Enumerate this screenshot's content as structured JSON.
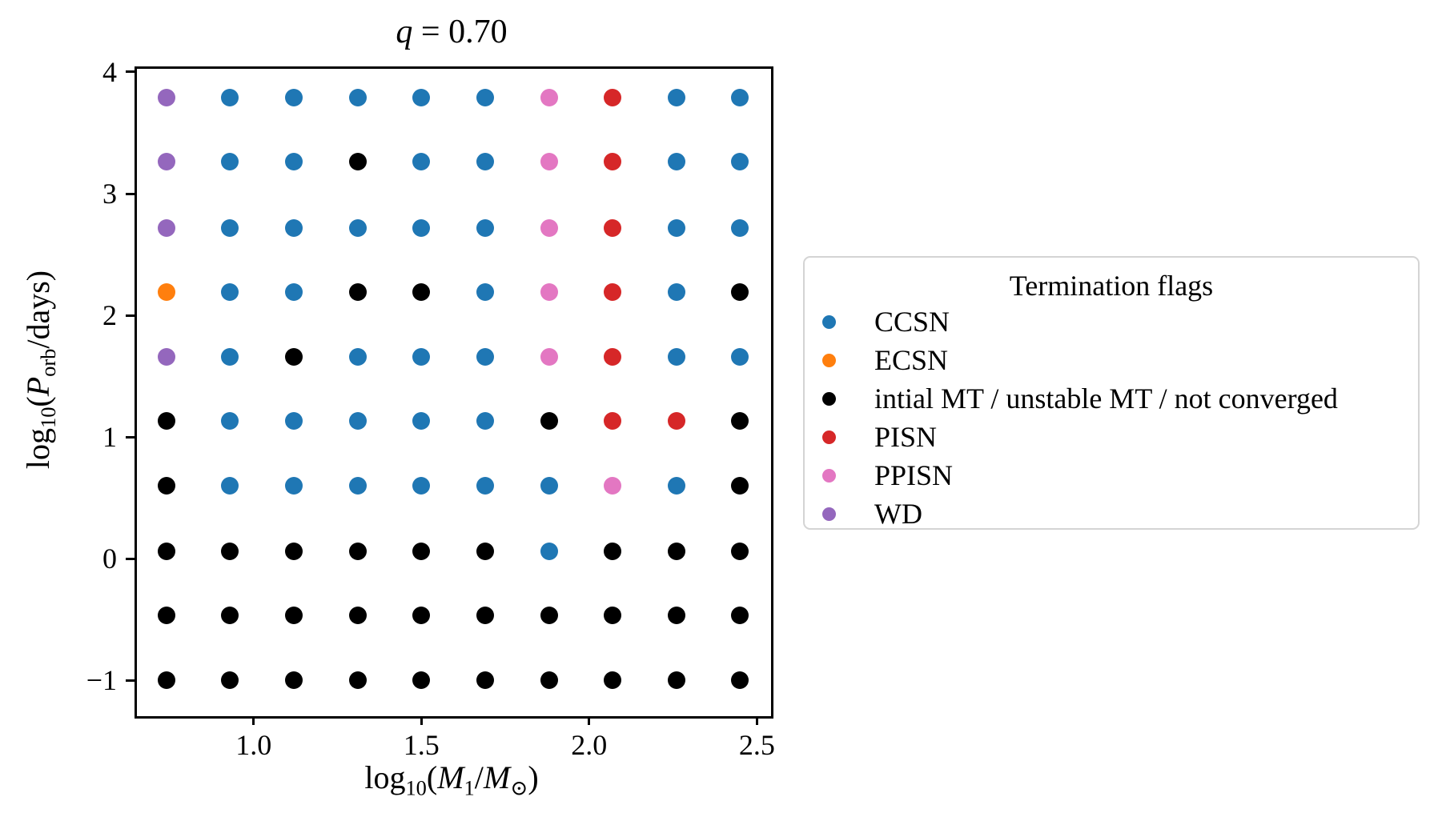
{
  "figure": {
    "background": "#ffffff",
    "title_parts": [
      {
        "t": "q",
        "it": true
      },
      {
        "t": " = 0.70"
      }
    ]
  },
  "chart_data": {
    "type": "scatter",
    "title": "q = 0.70",
    "xlabel": "log10(M1/Msun)",
    "ylabel": "log10(Porb/days)",
    "xlabel_parts": [
      {
        "t": "log"
      },
      {
        "t": "10",
        "sub": true
      },
      {
        "t": "("
      },
      {
        "t": "M",
        "it": true
      },
      {
        "t": "1",
        "sub": true
      },
      {
        "t": "/"
      },
      {
        "t": "M",
        "it": true
      },
      {
        "t": "⊙",
        "sub": true
      },
      {
        "t": ")"
      }
    ],
    "ylabel_parts": [
      {
        "t": "log"
      },
      {
        "t": "10",
        "sub": true
      },
      {
        "t": "("
      },
      {
        "t": "P",
        "it": true
      },
      {
        "t": "orb",
        "sub": true
      },
      {
        "t": "/days)"
      }
    ],
    "xlim": [
      0.645,
      2.535
    ],
    "ylim": [
      -1.276,
      4.046
    ],
    "x_ticks": {
      "values": [
        1.0,
        1.5,
        2.0,
        2.5
      ],
      "labels": [
        "1.0",
        "1.5",
        "2.0",
        "2.5"
      ]
    },
    "y_ticks": {
      "values": [
        4,
        3,
        2,
        1,
        0,
        -1
      ],
      "labels": [
        "4",
        "3",
        "2",
        "1",
        "0",
        "−1"
      ]
    },
    "x_values": [
      0.74,
      0.93,
      1.12,
      1.31,
      1.5,
      1.69,
      1.88,
      2.07,
      2.26,
      2.45
    ],
    "y_values": [
      3.79,
      3.26,
      2.72,
      2.19,
      1.66,
      1.13,
      0.6,
      0.06,
      -0.47,
      -1.0
    ],
    "grid_codes": [
      "WCCCCCPRCC",
      "WCCMCCPRCC",
      "WCCCCCPRCC",
      "ECCMMCPRCM",
      "WCMCCCPRCC",
      "MCCCCCMRRM",
      "MCCCCCCPCM",
      "MMMMMMCMMM",
      "MMMMMMMMMM",
      "MMMMMMMMMM"
    ],
    "code_map": {
      "C": "CCSN",
      "E": "ECSN",
      "M": "intial MT / unstable MT / not converged",
      "R": "PISN",
      "P": "PPISN",
      "W": "WD"
    },
    "legend": {
      "title": "Termination flags",
      "position": "center right",
      "entries": [
        {
          "label": "CCSN",
          "color": "#1f77b4"
        },
        {
          "label": "ECSN",
          "color": "#ff7f0e"
        },
        {
          "label": "intial MT / unstable MT / not converged",
          "color": "#000000"
        },
        {
          "label": "PISN",
          "color": "#d62728"
        },
        {
          "label": "PPISN",
          "color": "#e377c2"
        },
        {
          "label": "WD",
          "color": "#9467bd"
        }
      ]
    },
    "grid_lines": false,
    "marker_diameter_px": 22
  }
}
